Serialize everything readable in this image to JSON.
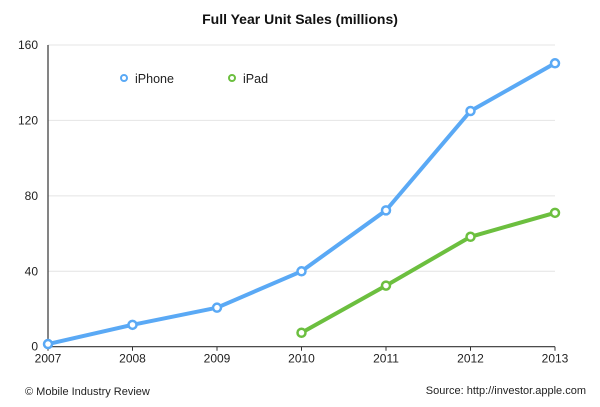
{
  "chart_data": {
    "type": "line",
    "title": "Full Year Unit Sales (millions)",
    "xlabel": "",
    "ylabel": "",
    "x": [
      2007,
      2008,
      2009,
      2010,
      2011,
      2012,
      2013
    ],
    "x_tick_labels": [
      "2007",
      "2008",
      "2009",
      "2010",
      "2011",
      "2012",
      "2013"
    ],
    "ylim": [
      0,
      160
    ],
    "y_ticks": [
      0,
      40,
      80,
      120,
      160
    ],
    "y_tick_labels": [
      "0",
      "40",
      "80",
      "120",
      "160"
    ],
    "grid": "horizontal",
    "legend_position": "top-left",
    "series": [
      {
        "name": "iPhone",
        "color": "#5aa9f5",
        "values": [
          1.4,
          11.6,
          20.7,
          40.0,
          72.3,
          125.0,
          150.3
        ]
      },
      {
        "name": "iPad",
        "color": "#6cbf3f",
        "values": [
          null,
          null,
          null,
          7.4,
          32.4,
          58.3,
          71.0
        ]
      }
    ]
  },
  "footer": {
    "copyright": "© Mobile Industry Review",
    "source": "Source: http://investor.apple.com"
  }
}
